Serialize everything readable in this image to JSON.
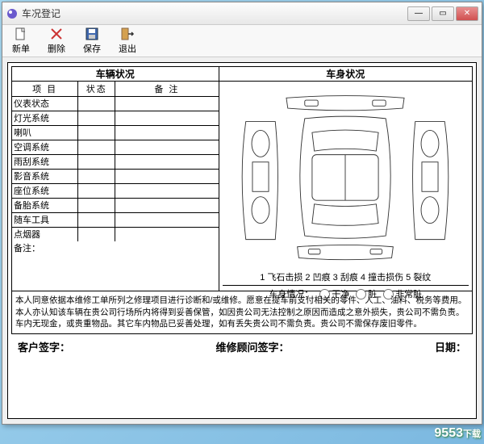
{
  "window": {
    "title": "车况登记"
  },
  "toolbar": {
    "new": "新单",
    "del": "删除",
    "save": "保存",
    "exit": "退出"
  },
  "sections": {
    "vehicle_cond": "车辆状况",
    "body_cond": "车身状况"
  },
  "cond_headers": {
    "item": "项   目",
    "state": "状态",
    "note": "备                      注"
  },
  "cond_items": [
    "仪表状态",
    "灯光系统",
    "喇叭",
    "空调系统",
    "雨刮系统",
    "影音系统",
    "座位系统",
    "备胎系统",
    "随车工具",
    "点烟器"
  ],
  "remarks_label": "备注：",
  "damage_legend": "1 飞石击损   2 凹痕   3 刮痕   4 撞击损伤   5 裂纹",
  "body_condition": {
    "label": "车身情况：",
    "options": [
      "干净",
      "脏",
      "非常脏"
    ]
  },
  "disclaimer": "本人同意依据本维修工单所列之修理项目进行诊断和/或维修。愿意在提车前支付相关的零件、人工、油料、税务等费用。本人亦认知该车辆在贵公司行场所内将得到妥善保管，如因贵公司无法控制之原因而造成之意外损失，贵公司不需负责。车内无现金，或贵重物品。其它车内物品已妥善处理，如有丢失贵公司不需负责。贵公司不需保存废旧零件。",
  "signatures": {
    "customer": "客户签字：",
    "advisor": "维修顾问签字：",
    "date": "日期："
  },
  "watermark": {
    "num": "9553",
    "cn": "下载"
  },
  "colors": {
    "border": "#000000",
    "bg": "#ffffff"
  }
}
